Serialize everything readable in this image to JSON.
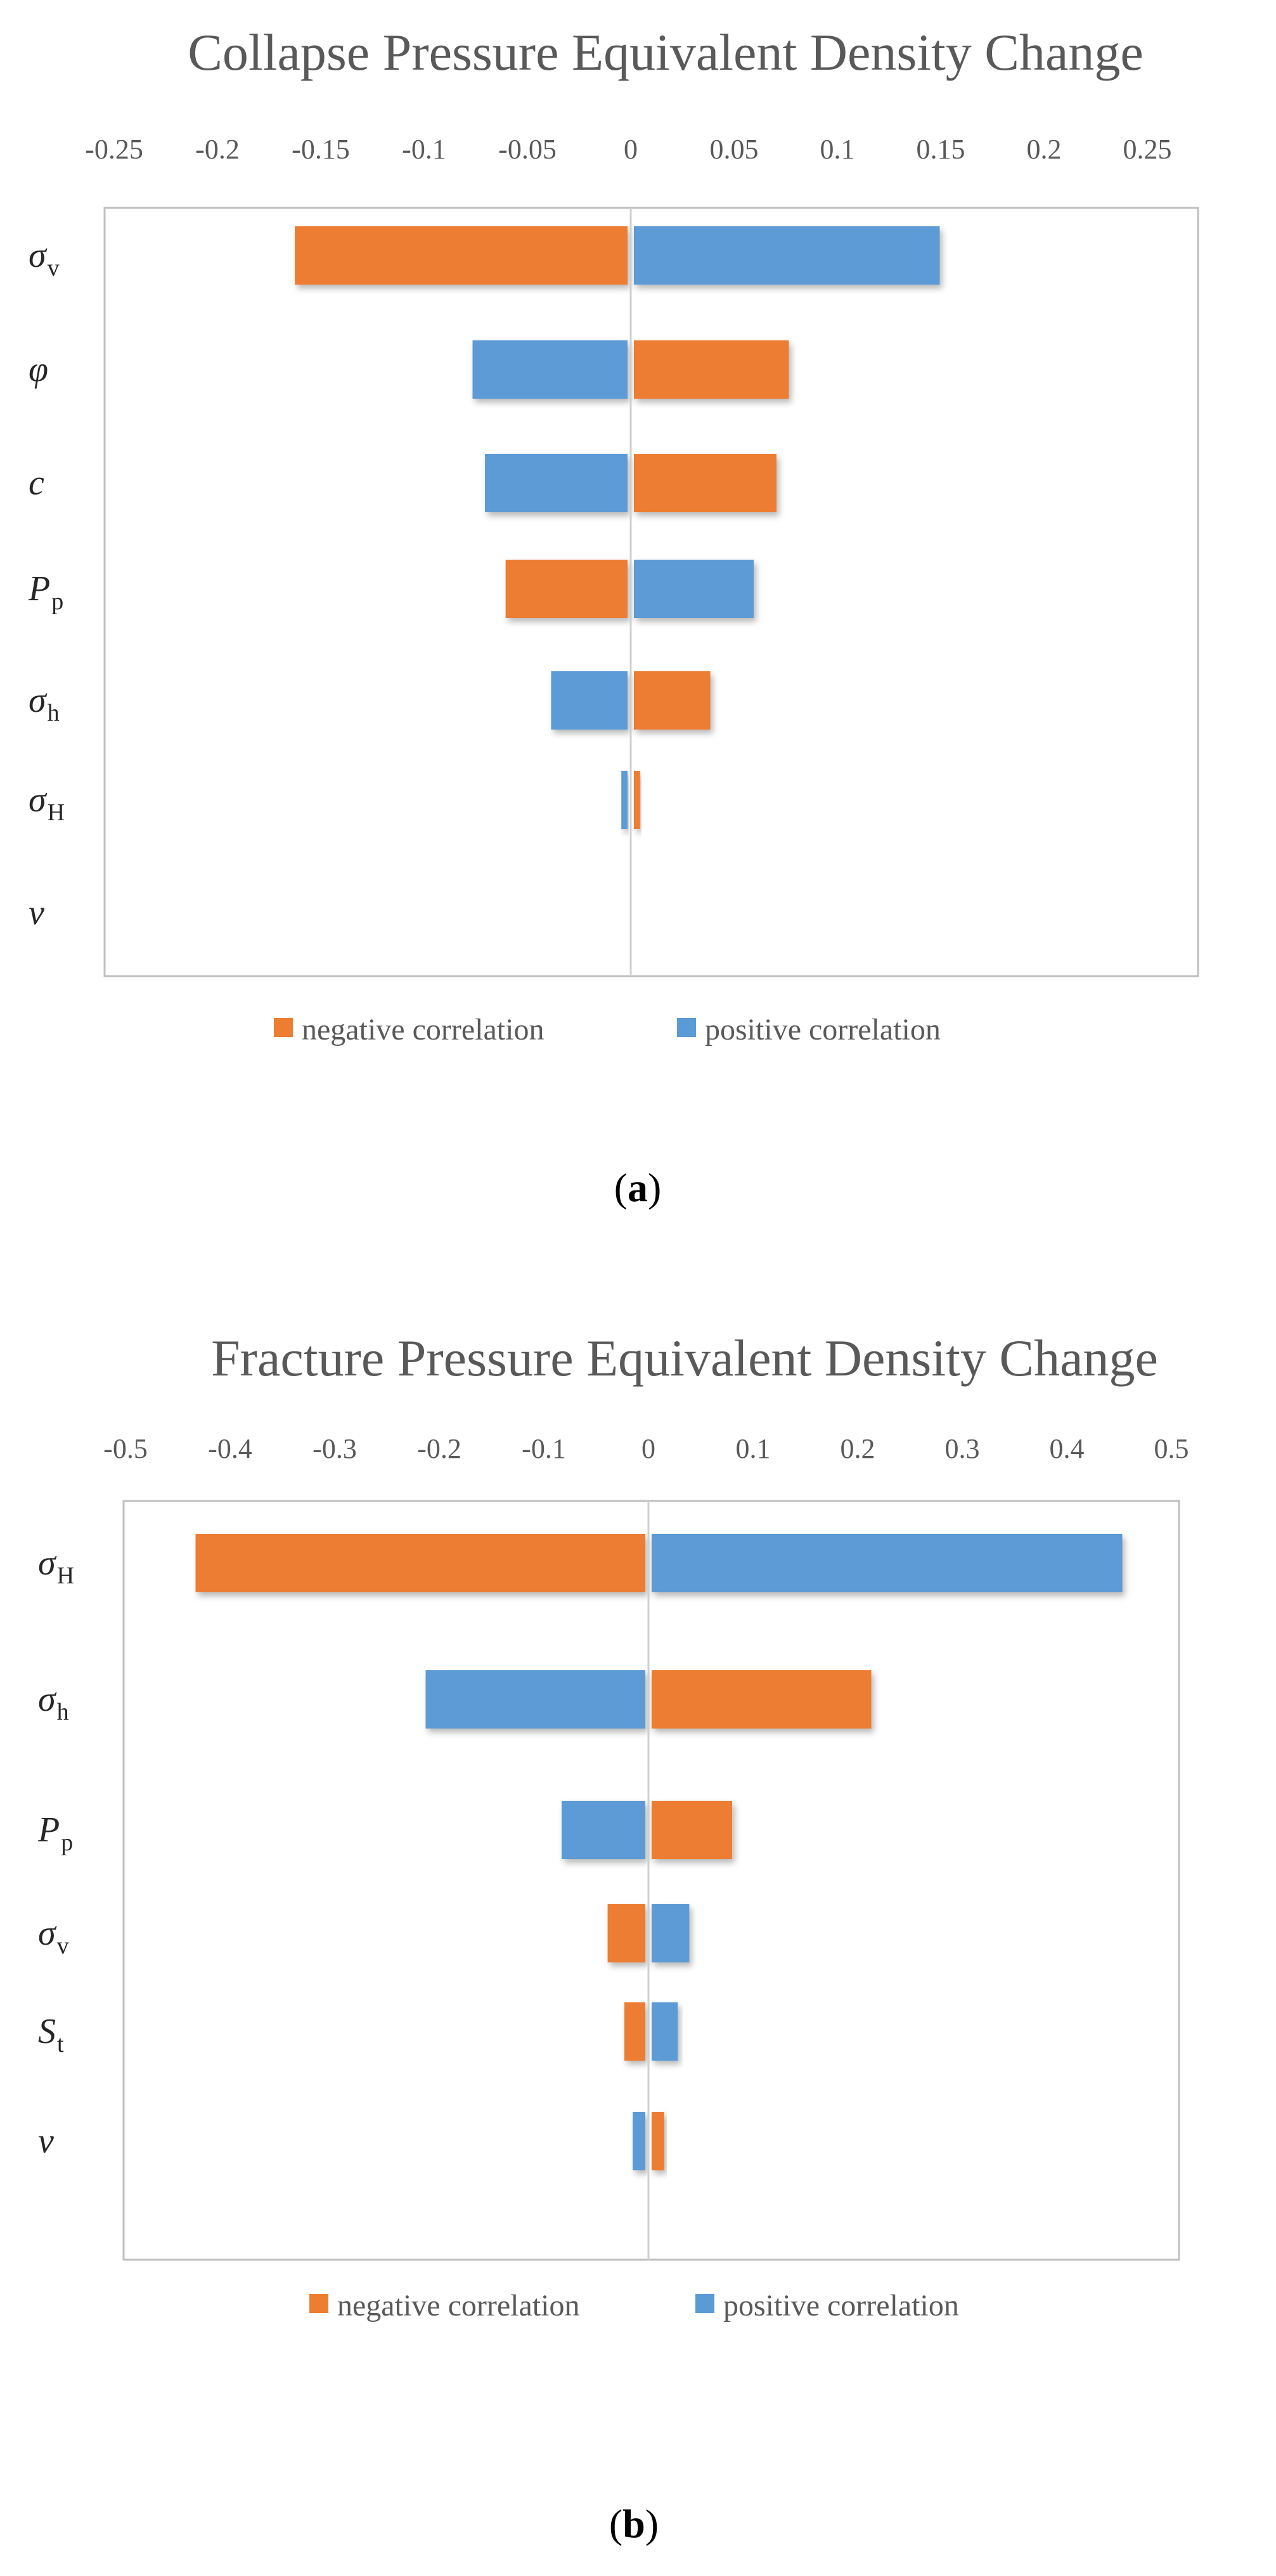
{
  "chart_data": [
    {
      "type": "bar",
      "orientation": "horizontal",
      "style": "tornado",
      "title": "Collapse Pressure Equivalent Density Change",
      "caption": {
        "open": "(",
        "letter": "a",
        "close": ")"
      },
      "xlim": [
        -0.25,
        0.25
      ],
      "xticks": [
        "-0.25",
        "-0.2",
        "-0.15",
        "-0.1",
        "-0.05",
        "0",
        "0.05",
        "0.1",
        "0.15",
        "0.2",
        "0.25"
      ],
      "categories": [
        {
          "sym": "σ",
          "sub": "v"
        },
        {
          "sym": "φ",
          "sub": ""
        },
        {
          "sym": "c",
          "sub": ""
        },
        {
          "sym": "P",
          "sub": "p"
        },
        {
          "sym": "σ",
          "sub": "h"
        },
        {
          "sym": "σ",
          "sub": "H"
        },
        {
          "sym": "ν",
          "sub": ""
        }
      ],
      "bars": [
        {
          "left": -0.161,
          "right": 0.148,
          "left_series": "negative correlation",
          "right_series": "positive correlation"
        },
        {
          "left": -0.075,
          "right": 0.075,
          "left_series": "positive correlation",
          "right_series": "negative correlation"
        },
        {
          "left": -0.069,
          "right": 0.069,
          "left_series": "positive correlation",
          "right_series": "negative correlation"
        },
        {
          "left": -0.059,
          "right": 0.058,
          "left_series": "negative correlation",
          "right_series": "positive correlation"
        },
        {
          "left": -0.037,
          "right": 0.037,
          "left_series": "positive correlation",
          "right_series": "negative correlation"
        },
        {
          "left": -0.003,
          "right": 0.003,
          "left_series": "positive correlation",
          "right_series": "negative correlation"
        },
        {
          "left": 0,
          "right": 0,
          "left_series": "positive correlation",
          "right_series": "negative correlation"
        }
      ],
      "legend": [
        {
          "label": "negative correlation",
          "color": "#ed7d31"
        },
        {
          "label": "positive correlation",
          "color": "#5b9bd5"
        }
      ]
    },
    {
      "type": "bar",
      "orientation": "horizontal",
      "style": "tornado",
      "title": "Fracture Pressure Equivalent Density Change",
      "caption": {
        "open": "(",
        "letter": "b",
        "close": ")"
      },
      "xlim": [
        -0.5,
        0.5
      ],
      "xticks": [
        "-0.5",
        "-0.4",
        "-0.3",
        "-0.2",
        "-0.1",
        "0",
        "0.1",
        "0.2",
        "0.3",
        "0.4",
        "0.5"
      ],
      "categories": [
        {
          "sym": "σ",
          "sub": "H"
        },
        {
          "sym": "σ",
          "sub": "h"
        },
        {
          "sym": "P",
          "sub": "p"
        },
        {
          "sym": "σ",
          "sub": "v"
        },
        {
          "sym": "S",
          "sub": "t"
        },
        {
          "sym": "ν",
          "sub": ""
        }
      ],
      "bars": [
        {
          "left": -0.43,
          "right": 0.45,
          "left_series": "negative correlation",
          "right_series": "positive correlation"
        },
        {
          "left": -0.21,
          "right": 0.21,
          "left_series": "positive correlation",
          "right_series": "negative correlation"
        },
        {
          "left": -0.08,
          "right": 0.077,
          "left_series": "positive correlation",
          "right_series": "negative correlation"
        },
        {
          "left": -0.036,
          "right": 0.036,
          "left_series": "negative correlation",
          "right_series": "positive correlation"
        },
        {
          "left": -0.02,
          "right": 0.025,
          "left_series": "negative correlation",
          "right_series": "positive correlation"
        },
        {
          "left": -0.012,
          "right": 0.012,
          "left_series": "positive correlation",
          "right_series": "negative correlation"
        }
      ],
      "legend": [
        {
          "label": "negative correlation",
          "color": "#ed7d31"
        },
        {
          "label": "positive correlation",
          "color": "#5b9bd5"
        }
      ]
    }
  ]
}
